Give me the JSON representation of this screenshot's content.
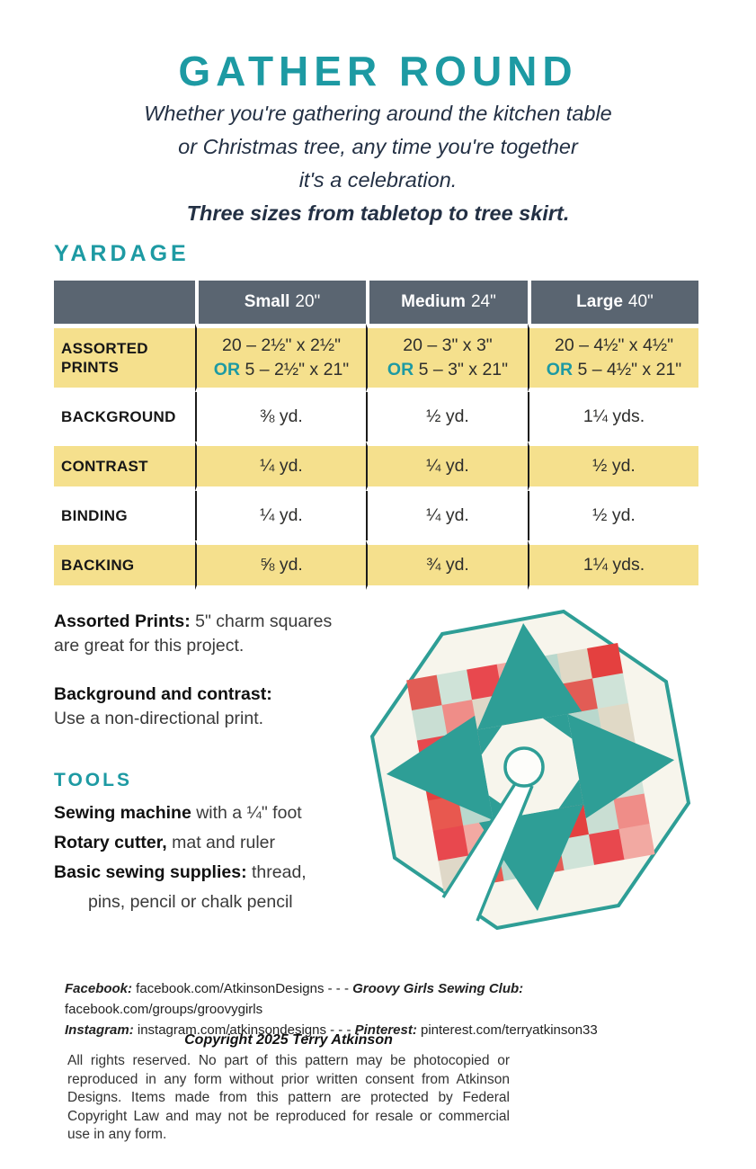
{
  "page": {
    "title": "GATHER ROUND",
    "subtitle_lines": [
      "Whether you're gathering around the kitchen table",
      "or Christmas tree, any time you're together",
      "it's a celebration."
    ],
    "subtitle_bold": "Three sizes from tabletop to tree skirt."
  },
  "yardage": {
    "heading": "YARDAGE",
    "columns": [
      {
        "name": "Small",
        "size": "20\""
      },
      {
        "name": "Medium",
        "size": "24\""
      },
      {
        "name": "Large",
        "size": "40\""
      }
    ],
    "rows": {
      "assorted": {
        "label": "ASSORTED PRINTS",
        "cells": [
          {
            "line1": "20 – 2½\" x 2½\"",
            "or": "OR",
            "line2": "5 – 2½\" x 21\""
          },
          {
            "line1": "20 – 3\" x 3\"",
            "or": "OR",
            "line2": "5 – 3\" x 21\""
          },
          {
            "line1": "20 – 4½\" x 4½\"",
            "or": "OR",
            "line2": "5 – 4½\" x 21\""
          }
        ]
      },
      "background": {
        "label": "BACKGROUND",
        "cells": [
          "⅜ yd.",
          "½ yd.",
          "1¼ yds."
        ]
      },
      "contrast": {
        "label": "CONTRAST",
        "cells": [
          "¼ yd.",
          "¼ yd.",
          "½ yd."
        ]
      },
      "binding": {
        "label": "BINDING",
        "cells": [
          "¼ yd.",
          "¼ yd.",
          "½ yd."
        ]
      },
      "backing": {
        "label": "BACKING",
        "cells": [
          "⅝ yd.",
          "¾ yd.",
          "1¼ yds."
        ]
      }
    }
  },
  "notes": {
    "note1_label": "Assorted Prints:",
    "note1_text": " 5\" charm squares are great for this project.",
    "note2_label": "Background and contrast:",
    "note2_text": "Use a non-directional print."
  },
  "tools": {
    "heading": "TOOLS",
    "item1_bold": "Sewing machine",
    "item1_rest": " with a ¼\" foot",
    "item2_bold": "Rotary cutter,",
    "item2_rest": " mat and ruler",
    "item3_bold": "Basic sewing supplies:",
    "item3_rest": "  thread,",
    "item3_line2": "pins, pencil or chalk pencil"
  },
  "social": {
    "facebook_label": "Facebook:",
    "facebook_url": " facebook.com/AtkinsonDesigns",
    "sep1": " - - - ",
    "club_label": "Groovy Girls Sewing Club:",
    "club_url": " facebook.com/groups/groovygirls",
    "instagram_label": "Instagram:",
    "instagram_url": " instagram.com/atkinsondesigns",
    "sep2": " - - - ",
    "pinterest_label": "Pinterest:",
    "pinterest_url": " pinterest.com/terryatkinson33"
  },
  "copyright": {
    "title": "Copyright 2025 Terry Atkinson",
    "body": "All rights reserved. No part of this pattern may be photocopied or reproduced in any form without prior written consent from Atkinson Designs. Items made from this pattern are protected by Federal Copyright Law and may not be reproduced for resale or commercial use in any form."
  },
  "colors": {
    "teal": "#1d9aa3",
    "navy": "#233044",
    "slate_header": "#5a6571",
    "yellow_row": "#f5e08d",
    "quilt_teal": "#2e9e96",
    "quilt_cream": "#f7f5ec"
  },
  "illustration": {
    "description": "octagonal patchwork tree skirt with teal twist ring, center circle opening and slit",
    "patch_palette": [
      "#e25c55",
      "#cfe3d8",
      "#e8484e",
      "#f2a9a2",
      "#b9d8cd",
      "#e0d9c6",
      "#e4403f",
      "#c9ded3",
      "#ef8d88",
      "#dfd8c8",
      "#e8584f",
      "#b9d8cd"
    ]
  }
}
